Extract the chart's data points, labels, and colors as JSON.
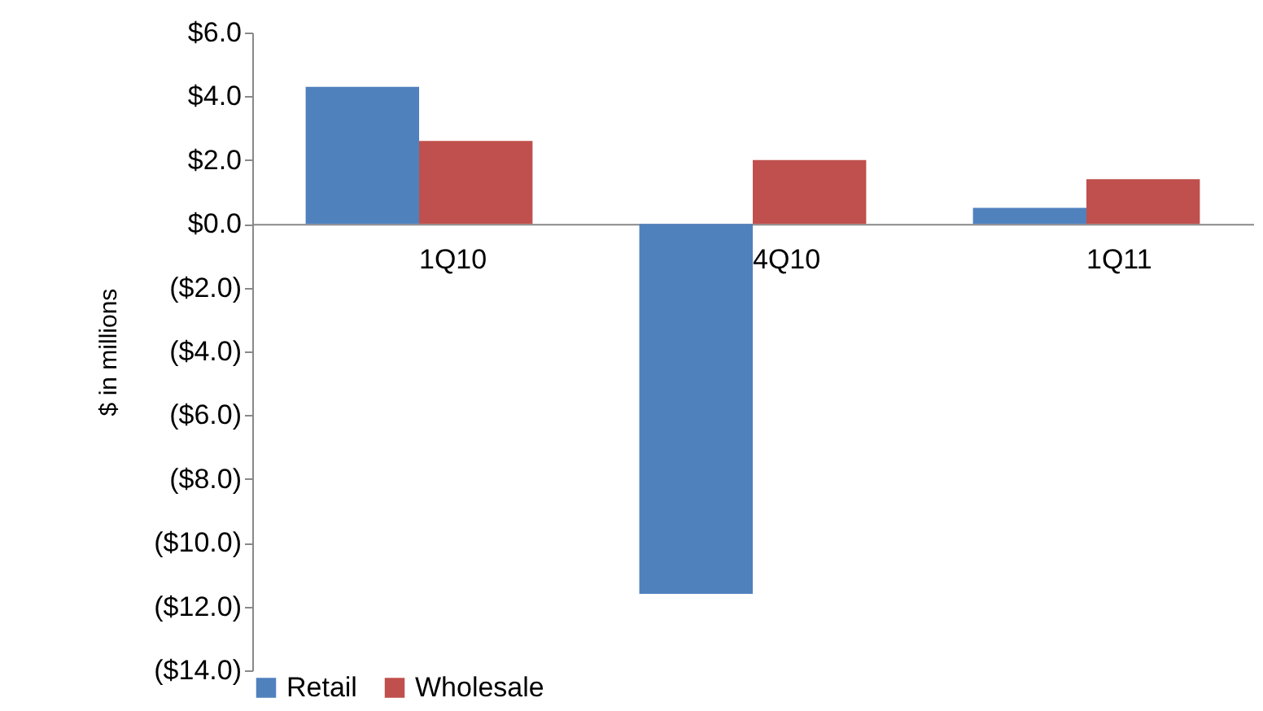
{
  "chart_data": {
    "type": "bar",
    "ylabel": "$ in millions",
    "categories": [
      "1Q10",
      "4Q10",
      "1Q11"
    ],
    "series": [
      {
        "name": "Retail",
        "color": "#4f81bd",
        "values": [
          4.3,
          -11.6,
          0.5
        ]
      },
      {
        "name": "Wholesale",
        "color": "#c0504d",
        "values": [
          2.6,
          2.0,
          1.4
        ]
      }
    ],
    "ylim": [
      -14,
      6
    ],
    "yticks": [
      {
        "value": 6,
        "label": "$6.0"
      },
      {
        "value": 4,
        "label": "$4.0"
      },
      {
        "value": 2,
        "label": "$2.0"
      },
      {
        "value": 0,
        "label": "$0.0"
      },
      {
        "value": -2,
        "label": "($2.0)"
      },
      {
        "value": -4,
        "label": "($4.0)"
      },
      {
        "value": -6,
        "label": "($6.0)"
      },
      {
        "value": -8,
        "label": "($8.0)"
      },
      {
        "value": -10,
        "label": "($10.0)"
      },
      {
        "value": -12,
        "label": "($12.0)"
      },
      {
        "value": -14,
        "label": "($14.0)"
      }
    ],
    "grid": false,
    "legend": "bottom"
  }
}
